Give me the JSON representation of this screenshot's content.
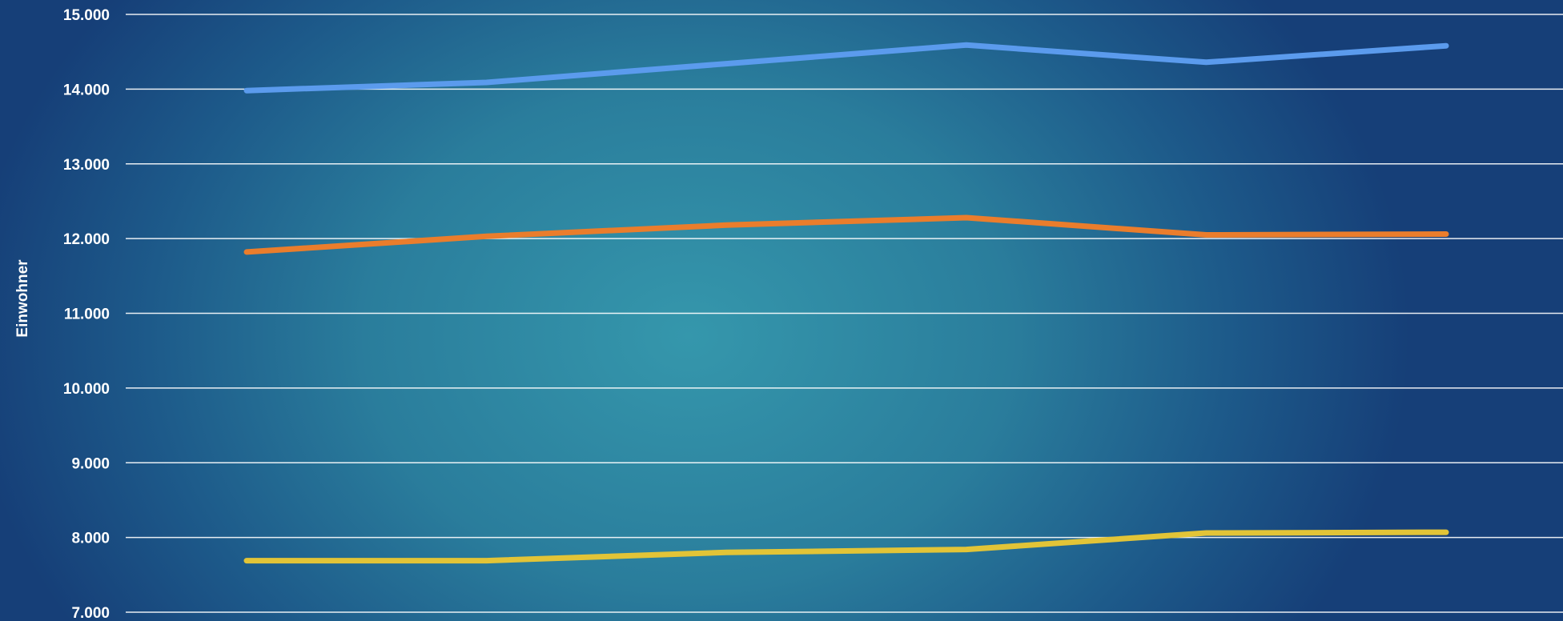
{
  "chart_data": {
    "type": "line",
    "ylabel": "Einwohner",
    "ylim": [
      7000,
      15000
    ],
    "y_ticks": [
      "15.000",
      "14.000",
      "13.000",
      "12.000",
      "11.000",
      "10.000",
      "9.000",
      "8.000",
      "7.000"
    ],
    "x": [
      1,
      2,
      3,
      4,
      5,
      6
    ],
    "grid": true,
    "series": [
      {
        "color": "#5b9bed",
        "values": [
          13980,
          14090,
          14340,
          14590,
          14360,
          14580
        ]
      },
      {
        "color": "#ea7d2c",
        "values": [
          11820,
          12030,
          12180,
          12280,
          12050,
          12060
        ]
      },
      {
        "color": "#e2c437",
        "values": [
          7690,
          7690,
          7800,
          7840,
          8060,
          8070
        ]
      }
    ]
  }
}
